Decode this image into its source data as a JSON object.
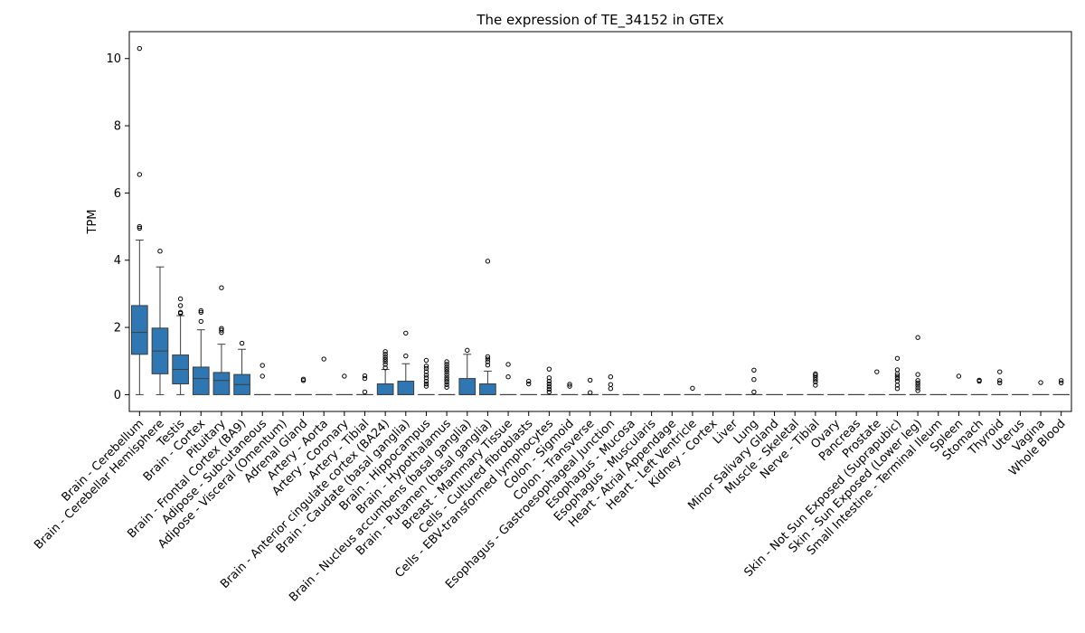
{
  "chart_data": {
    "type": "box",
    "title": "The expression of TE_34152 in GTEx",
    "xlabel": "",
    "ylabel": "TPM",
    "ylim": [
      -0.5,
      10.8
    ],
    "yticks": [
      0,
      2,
      4,
      6,
      8,
      10
    ],
    "grid": false,
    "legend": "none",
    "box_color": "#2f77b2",
    "categories": [
      {
        "name": "Brain - Cerebellum",
        "whislo": 0.0,
        "q1": 1.2,
        "med": 1.85,
        "q3": 2.65,
        "whishi": 4.6,
        "fliers": [
          4.95,
          5.0,
          6.55,
          10.3
        ]
      },
      {
        "name": "Brain - Cerebellar Hemisphere",
        "whislo": 0.0,
        "q1": 0.62,
        "med": 1.3,
        "q3": 1.98,
        "whishi": 3.8,
        "fliers": [
          4.27
        ]
      },
      {
        "name": "Testis",
        "whislo": 0.0,
        "q1": 0.32,
        "med": 0.75,
        "q3": 1.18,
        "whishi": 2.35,
        "fliers": [
          2.42,
          2.45,
          2.65,
          2.85
        ]
      },
      {
        "name": "Brain - Cortex",
        "whislo": 0.0,
        "q1": 0.0,
        "med": 0.48,
        "q3": 0.82,
        "whishi": 1.93,
        "fliers": [
          2.18,
          2.45,
          2.5
        ]
      },
      {
        "name": "Pituitary",
        "whislo": 0.0,
        "q1": 0.0,
        "med": 0.42,
        "q3": 0.66,
        "whishi": 1.5,
        "fliers": [
          1.85,
          1.92,
          1.97,
          3.18
        ]
      },
      {
        "name": "Brain - Frontal Cortex (BA9)",
        "whislo": 0.0,
        "q1": 0.0,
        "med": 0.3,
        "q3": 0.6,
        "whishi": 1.35,
        "fliers": [
          1.53
        ]
      },
      {
        "name": "Adipose - Subcutaneous",
        "whislo": 0.0,
        "q1": 0.0,
        "med": 0.0,
        "q3": 0.0,
        "whishi": 0.0,
        "fliers": [
          0.55,
          0.87
        ]
      },
      {
        "name": "Adipose - Visceral (Omentum)",
        "whislo": 0.0,
        "q1": 0.0,
        "med": 0.0,
        "q3": 0.0,
        "whishi": 0.0,
        "fliers": []
      },
      {
        "name": "Adrenal Gland",
        "whislo": 0.0,
        "q1": 0.0,
        "med": 0.0,
        "q3": 0.0,
        "whishi": 0.0,
        "fliers": [
          0.42,
          0.46
        ]
      },
      {
        "name": "Artery - Aorta",
        "whislo": 0.0,
        "q1": 0.0,
        "med": 0.0,
        "q3": 0.0,
        "whishi": 0.0,
        "fliers": [
          1.06
        ]
      },
      {
        "name": "Artery - Coronary",
        "whislo": 0.0,
        "q1": 0.0,
        "med": 0.0,
        "q3": 0.0,
        "whishi": 0.0,
        "fliers": [
          0.55
        ]
      },
      {
        "name": "Artery - Tibial",
        "whislo": 0.0,
        "q1": 0.0,
        "med": 0.0,
        "q3": 0.0,
        "whishi": 0.0,
        "fliers": [
          0.08,
          0.48,
          0.56
        ]
      },
      {
        "name": "Brain - Anterior cingulate cortex (BA24)",
        "whislo": 0.0,
        "q1": 0.0,
        "med": 0.0,
        "q3": 0.32,
        "whishi": 0.75,
        "fliers": [
          0.8,
          0.9,
          0.98,
          1.05,
          1.12,
          1.2,
          1.28
        ]
      },
      {
        "name": "Brain - Caudate (basal ganglia)",
        "whislo": 0.0,
        "q1": 0.0,
        "med": 0.0,
        "q3": 0.4,
        "whishi": 0.92,
        "fliers": [
          1.15,
          1.83
        ]
      },
      {
        "name": "Brain - Hippocampus",
        "whislo": 0.0,
        "q1": 0.0,
        "med": 0.0,
        "q3": 0.0,
        "whishi": 0.0,
        "fliers": [
          0.25,
          0.32,
          0.4,
          0.5,
          0.58,
          0.68,
          0.78,
          0.85,
          1.02
        ]
      },
      {
        "name": "Brain - Hypothalamus",
        "whislo": 0.0,
        "q1": 0.0,
        "med": 0.0,
        "q3": 0.0,
        "whishi": 0.0,
        "fliers": [
          0.22,
          0.3,
          0.38,
          0.45,
          0.52,
          0.6,
          0.68,
          0.75,
          0.82,
          0.9,
          0.98
        ]
      },
      {
        "name": "Brain - Nucleus accumbens (basal ganglia)",
        "whislo": 0.0,
        "q1": 0.0,
        "med": 0.0,
        "q3": 0.48,
        "whishi": 1.2,
        "fliers": [
          1.32
        ]
      },
      {
        "name": "Brain - Putamen (basal ganglia)",
        "whislo": 0.0,
        "q1": 0.0,
        "med": 0.0,
        "q3": 0.32,
        "whishi": 0.7,
        "fliers": [
          0.88,
          0.98,
          1.06,
          1.13,
          3.97
        ]
      },
      {
        "name": "Breast - Mammary Tissue",
        "whislo": 0.0,
        "q1": 0.0,
        "med": 0.0,
        "q3": 0.0,
        "whishi": 0.0,
        "fliers": [
          0.53,
          0.9
        ]
      },
      {
        "name": "Cells - Cultured fibroblasts",
        "whislo": 0.0,
        "q1": 0.0,
        "med": 0.0,
        "q3": 0.0,
        "whishi": 0.0,
        "fliers": [
          0.32,
          0.4
        ]
      },
      {
        "name": "Cells - EBV-transformed lymphocytes",
        "whislo": 0.0,
        "q1": 0.0,
        "med": 0.0,
        "q3": 0.0,
        "whishi": 0.0,
        "fliers": [
          0.08,
          0.16,
          0.24,
          0.32,
          0.4,
          0.5,
          0.76
        ]
      },
      {
        "name": "Colon - Sigmoid",
        "whislo": 0.0,
        "q1": 0.0,
        "med": 0.0,
        "q3": 0.0,
        "whishi": 0.0,
        "fliers": [
          0.25,
          0.31
        ]
      },
      {
        "name": "Colon - Transverse",
        "whislo": 0.0,
        "q1": 0.0,
        "med": 0.0,
        "q3": 0.0,
        "whishi": 0.0,
        "fliers": [
          0.06,
          0.43
        ]
      },
      {
        "name": "Esophagus - Gastroesophageal Junction",
        "whislo": 0.0,
        "q1": 0.0,
        "med": 0.0,
        "q3": 0.0,
        "whishi": 0.0,
        "fliers": [
          0.18,
          0.3,
          0.53
        ]
      },
      {
        "name": "Esophagus - Mucosa",
        "whislo": 0.0,
        "q1": 0.0,
        "med": 0.0,
        "q3": 0.0,
        "whishi": 0.0,
        "fliers": []
      },
      {
        "name": "Esophagus - Muscularis",
        "whislo": 0.0,
        "q1": 0.0,
        "med": 0.0,
        "q3": 0.0,
        "whishi": 0.0,
        "fliers": []
      },
      {
        "name": "Heart - Atrial Appendage",
        "whislo": 0.0,
        "q1": 0.0,
        "med": 0.0,
        "q3": 0.0,
        "whishi": 0.0,
        "fliers": []
      },
      {
        "name": "Heart - Left Ventricle",
        "whislo": 0.0,
        "q1": 0.0,
        "med": 0.0,
        "q3": 0.0,
        "whishi": 0.0,
        "fliers": [
          0.19
        ]
      },
      {
        "name": "Kidney - Cortex",
        "whislo": 0.0,
        "q1": 0.0,
        "med": 0.0,
        "q3": 0.0,
        "whishi": 0.0,
        "fliers": []
      },
      {
        "name": "Liver",
        "whislo": 0.0,
        "q1": 0.0,
        "med": 0.0,
        "q3": 0.0,
        "whishi": 0.0,
        "fliers": []
      },
      {
        "name": "Lung",
        "whislo": 0.0,
        "q1": 0.0,
        "med": 0.0,
        "q3": 0.0,
        "whishi": 0.0,
        "fliers": [
          0.08,
          0.45,
          0.73
        ]
      },
      {
        "name": "Minor Salivary Gland",
        "whislo": 0.0,
        "q1": 0.0,
        "med": 0.0,
        "q3": 0.0,
        "whishi": 0.0,
        "fliers": []
      },
      {
        "name": "Muscle - Skeletal",
        "whislo": 0.0,
        "q1": 0.0,
        "med": 0.0,
        "q3": 0.0,
        "whishi": 0.0,
        "fliers": []
      },
      {
        "name": "Nerve - Tibial",
        "whislo": 0.0,
        "q1": 0.0,
        "med": 0.0,
        "q3": 0.0,
        "whishi": 0.0,
        "fliers": [
          0.28,
          0.38,
          0.45,
          0.52,
          0.58,
          0.62
        ]
      },
      {
        "name": "Ovary",
        "whislo": 0.0,
        "q1": 0.0,
        "med": 0.0,
        "q3": 0.0,
        "whishi": 0.0,
        "fliers": []
      },
      {
        "name": "Pancreas",
        "whislo": 0.0,
        "q1": 0.0,
        "med": 0.0,
        "q3": 0.0,
        "whishi": 0.0,
        "fliers": []
      },
      {
        "name": "Prostate",
        "whislo": 0.0,
        "q1": 0.0,
        "med": 0.0,
        "q3": 0.0,
        "whishi": 0.0,
        "fliers": [
          0.68
        ]
      },
      {
        "name": "Skin - Not Sun Exposed (Suprapubic)",
        "whislo": 0.0,
        "q1": 0.0,
        "med": 0.0,
        "q3": 0.0,
        "whishi": 0.0,
        "fliers": [
          0.18,
          0.28,
          0.4,
          0.48,
          0.55,
          0.62,
          0.74,
          1.08
        ]
      },
      {
        "name": "Skin - Sun Exposed (Lower leg)",
        "whislo": 0.0,
        "q1": 0.0,
        "med": 0.0,
        "q3": 0.0,
        "whishi": 0.0,
        "fliers": [
          0.12,
          0.2,
          0.28,
          0.35,
          0.42,
          0.6,
          1.7
        ]
      },
      {
        "name": "Small Intestine - Terminal Ileum",
        "whislo": 0.0,
        "q1": 0.0,
        "med": 0.0,
        "q3": 0.0,
        "whishi": 0.0,
        "fliers": []
      },
      {
        "name": "Spleen",
        "whislo": 0.0,
        "q1": 0.0,
        "med": 0.0,
        "q3": 0.0,
        "whishi": 0.0,
        "fliers": [
          0.55
        ]
      },
      {
        "name": "Stomach",
        "whislo": 0.0,
        "q1": 0.0,
        "med": 0.0,
        "q3": 0.0,
        "whishi": 0.0,
        "fliers": [
          0.4,
          0.43
        ]
      },
      {
        "name": "Thyroid",
        "whislo": 0.0,
        "q1": 0.0,
        "med": 0.0,
        "q3": 0.0,
        "whishi": 0.0,
        "fliers": [
          0.35,
          0.42,
          0.68
        ]
      },
      {
        "name": "Uterus",
        "whislo": 0.0,
        "q1": 0.0,
        "med": 0.0,
        "q3": 0.0,
        "whishi": 0.0,
        "fliers": []
      },
      {
        "name": "Vagina",
        "whislo": 0.0,
        "q1": 0.0,
        "med": 0.0,
        "q3": 0.0,
        "whishi": 0.0,
        "fliers": [
          0.36
        ]
      },
      {
        "name": "Whole Blood",
        "whislo": 0.0,
        "q1": 0.0,
        "med": 0.0,
        "q3": 0.0,
        "whishi": 0.0,
        "fliers": [
          0.35,
          0.42
        ]
      }
    ]
  }
}
